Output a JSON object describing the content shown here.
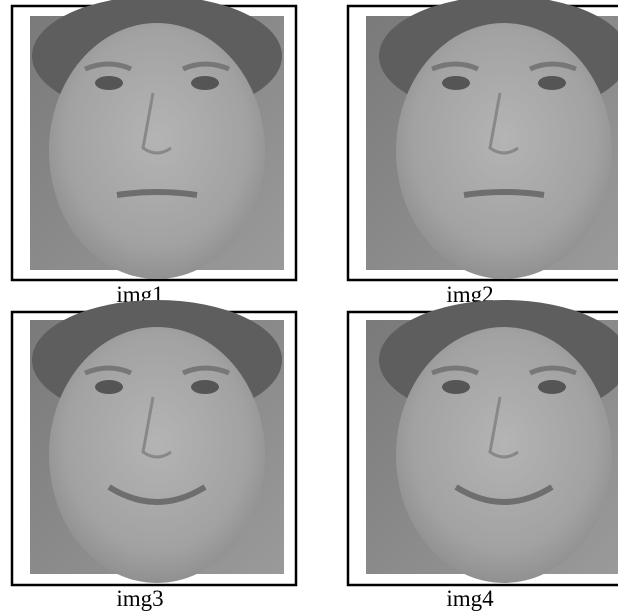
{
  "images": [
    {
      "label": "img1"
    },
    {
      "label": "img2"
    },
    {
      "label": "img3"
    },
    {
      "label": "img4"
    }
  ]
}
